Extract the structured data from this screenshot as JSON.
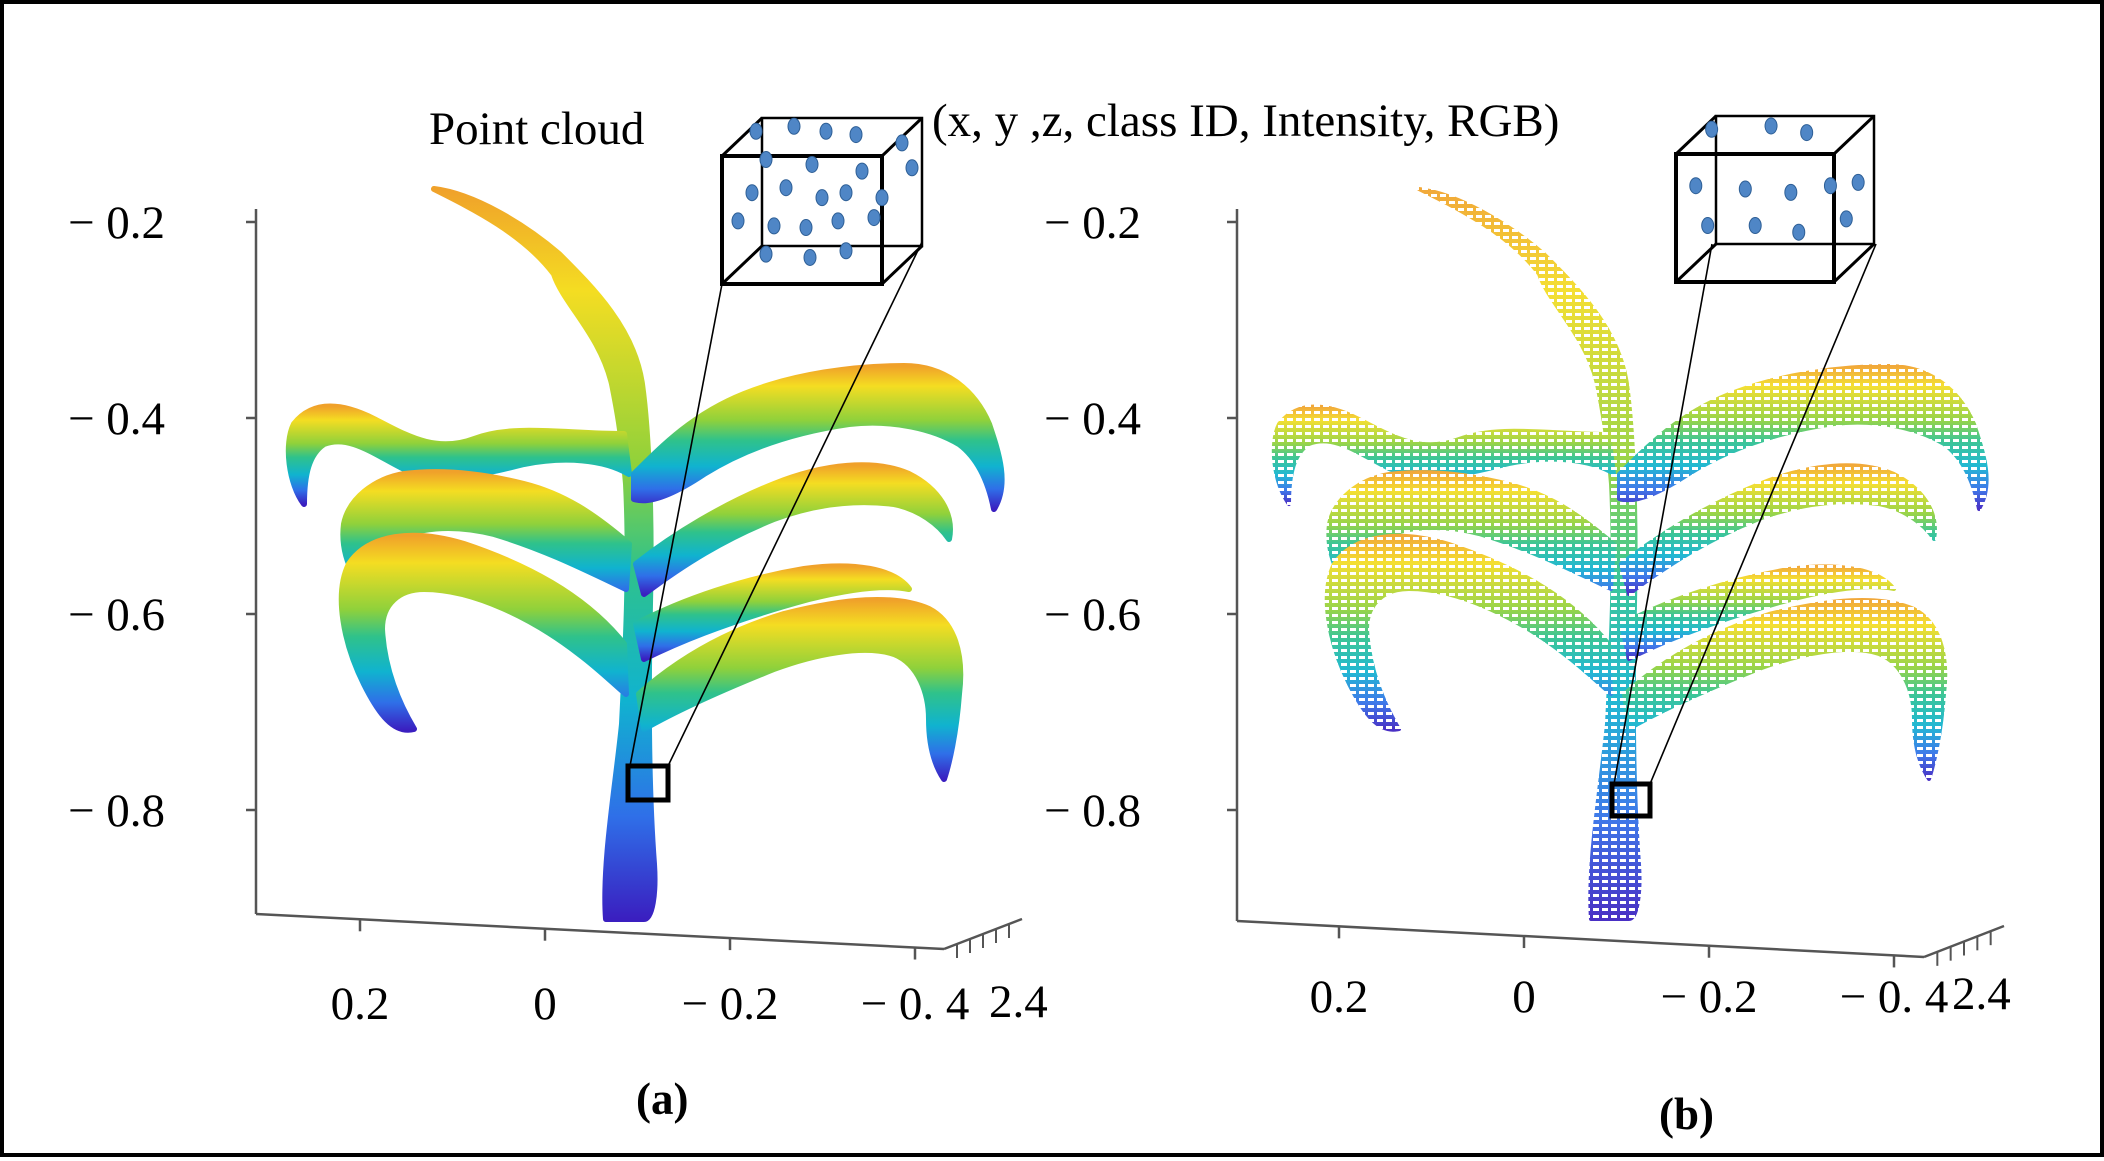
{
  "annotations": {
    "point_cloud_label": "Point cloud",
    "attributes_label": "(x, y ,z, class ID, Intensity, RGB)"
  },
  "colors": {
    "gradient": [
      "#3a1fc0",
      "#2f6fe8",
      "#10b3cf",
      "#2fc28b",
      "#8fd13b",
      "#f4dd22",
      "#f0a12a"
    ]
  },
  "chart_data": [
    {
      "type": "scatter",
      "panel_label": "(a)",
      "render": "dense point cloud",
      "z_ticks": [
        "− 0.2",
        "− 0.4",
        "− 0.6",
        "− 0.8"
      ],
      "z_values": [
        -0.2,
        -0.4,
        -0.6,
        -0.8
      ],
      "x_ticks": [
        "0.2",
        "0",
        "− 0.2",
        "− 0. 4"
      ],
      "x_values": [
        0.2,
        0,
        -0.2,
        -0.4
      ],
      "y_ticks": [
        "2.4"
      ],
      "zlim": [
        -0.9,
        -0.15
      ],
      "colormap": "parula (color by height z)"
    },
    {
      "type": "scatter",
      "panel_label": "(b)",
      "render": "sparse / downsampled point cloud",
      "z_ticks": [
        "− 0.2",
        "− 0.4",
        "− 0.6",
        "− 0.8"
      ],
      "z_values": [
        -0.2,
        -0.4,
        -0.6,
        -0.8
      ],
      "x_ticks": [
        "0.2",
        "0",
        "− 0.2",
        "− 0. 4"
      ],
      "x_values": [
        0.2,
        0,
        -0.2,
        -0.4
      ],
      "y_ticks": [
        "2.4"
      ],
      "zlim": [
        -0.9,
        -0.15
      ],
      "colormap": "parula (color by height z)"
    }
  ]
}
